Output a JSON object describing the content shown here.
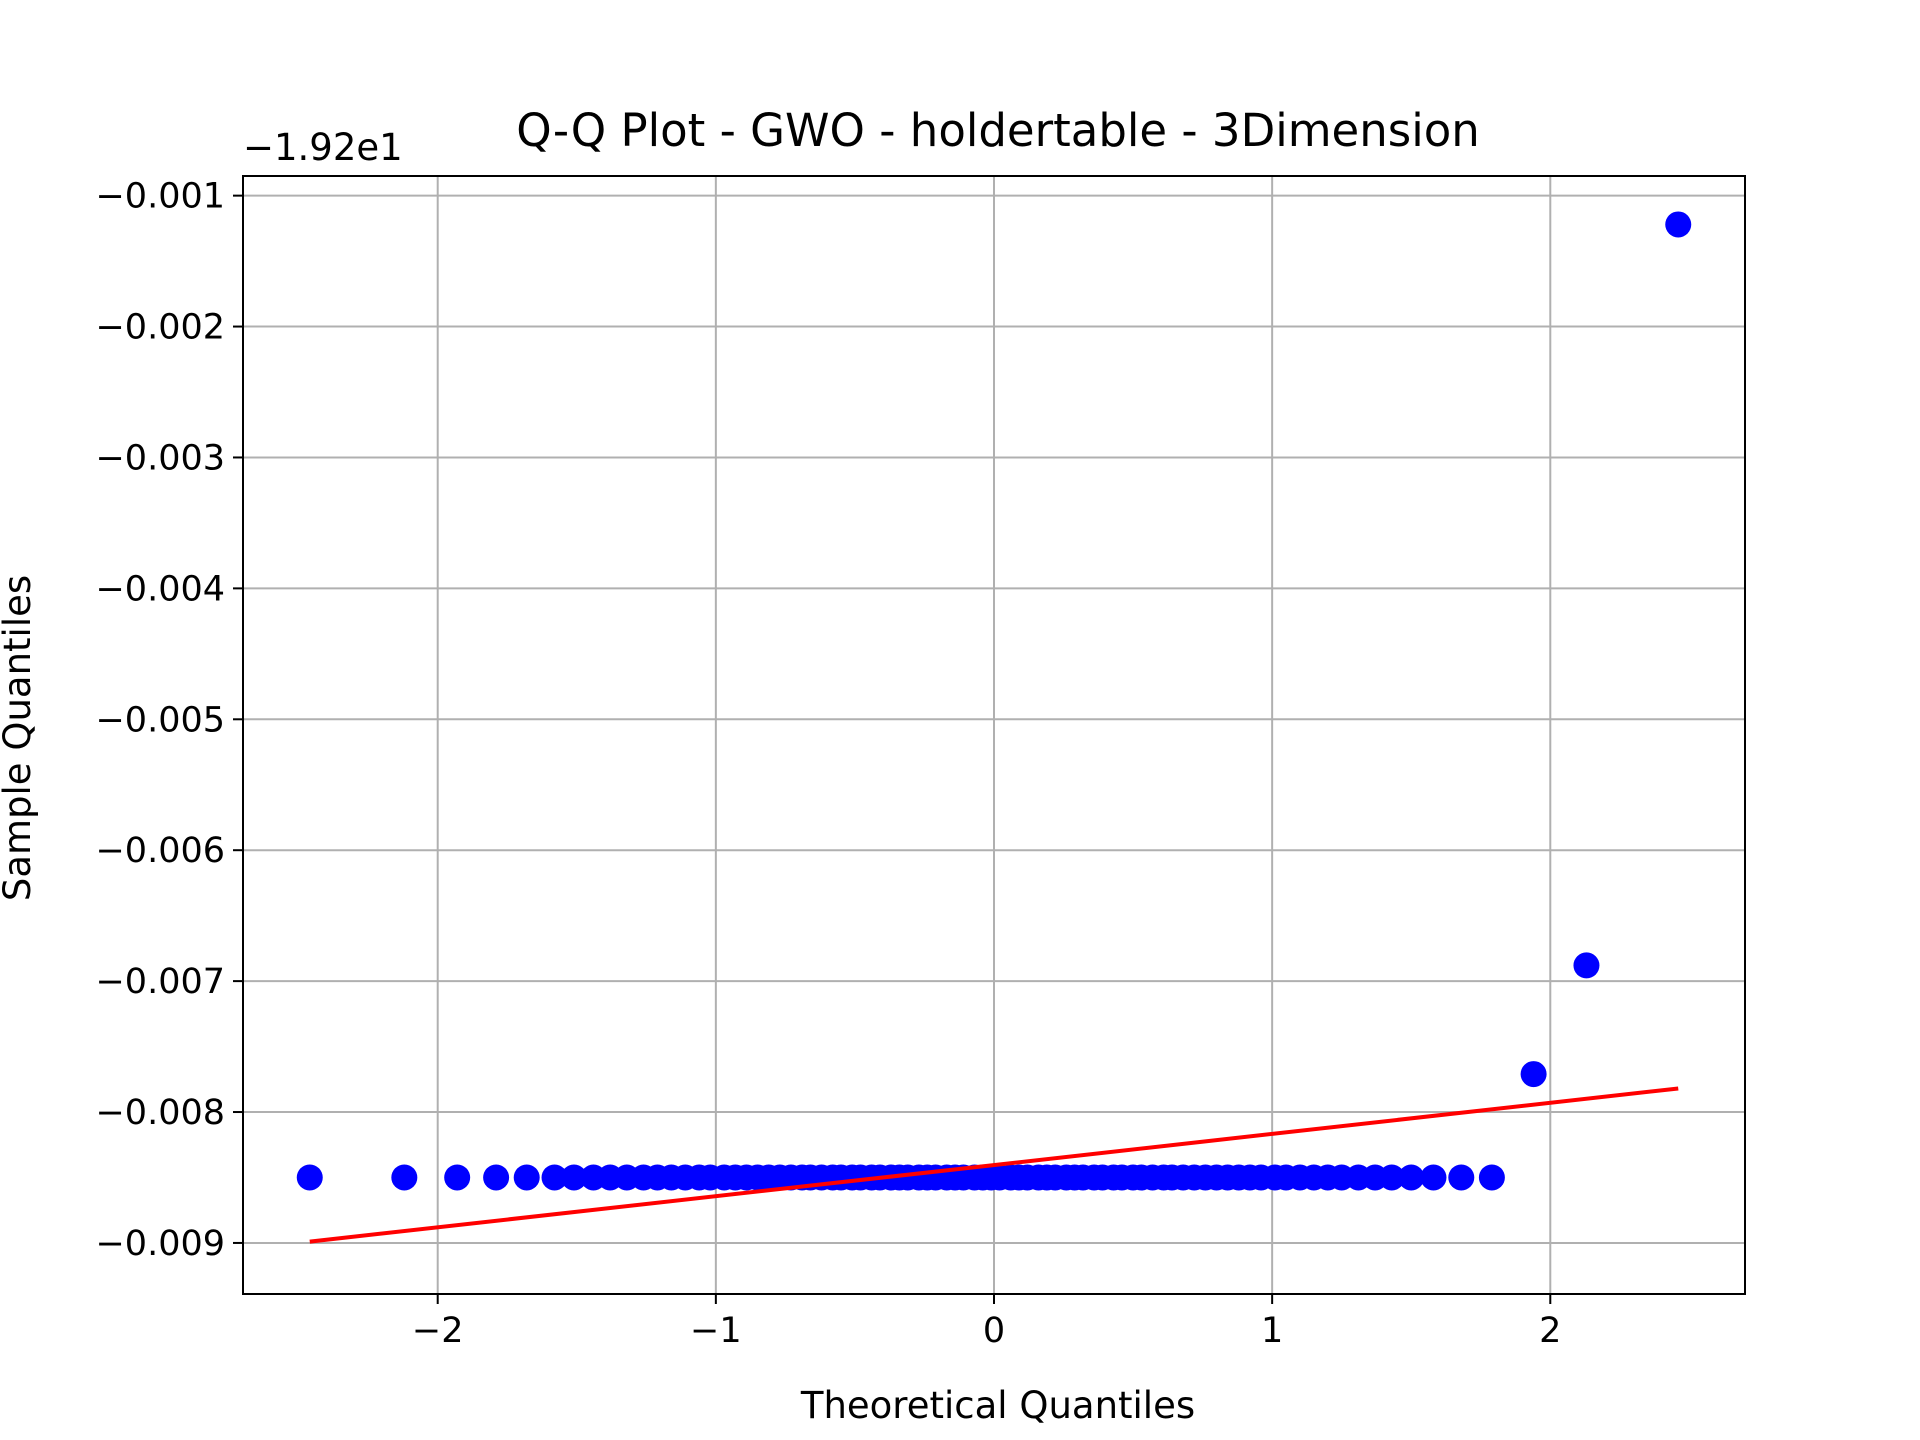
{
  "chart_data": {
    "type": "scatter",
    "title": "Q-Q Plot - GWO - holdertable - 3Dimension",
    "xlabel": "Theoretical Quantiles",
    "ylabel": "Sample Quantiles",
    "y_offset_label": "−1.92e1",
    "xlim": [
      -2.7,
      2.7
    ],
    "ylim": [
      -0.00939,
      -0.00085
    ],
    "x_ticks": [
      -2,
      -1,
      0,
      1,
      2
    ],
    "x_tick_labels": [
      "−2",
      "−1",
      "0",
      "1",
      "2"
    ],
    "y_ticks": [
      -0.001,
      -0.002,
      -0.003,
      -0.004,
      -0.005,
      -0.006,
      -0.007,
      -0.008,
      -0.009
    ],
    "y_tick_labels": [
      "−0.001",
      "−0.002",
      "−0.003",
      "−0.004",
      "−0.005",
      "−0.006",
      "−0.007",
      "−0.008",
      "−0.009"
    ],
    "grid": true,
    "series": [
      {
        "kind": "points",
        "color": "#0000ff",
        "x": [
          -2.46,
          -2.12,
          -1.93,
          -1.79,
          -1.68,
          -1.58,
          -1.51,
          -1.44,
          -1.38,
          -1.32,
          -1.26,
          -1.21,
          -1.16,
          -1.11,
          -1.06,
          -1.02,
          -0.97,
          -0.93,
          -0.89,
          -0.85,
          -0.81,
          -0.77,
          -0.73,
          -0.69,
          -0.66,
          -0.62,
          -0.58,
          -0.55,
          -0.51,
          -0.48,
          -0.44,
          -0.41,
          -0.37,
          -0.34,
          -0.31,
          -0.27,
          -0.24,
          -0.21,
          -0.17,
          -0.14,
          -0.11,
          -0.07,
          -0.04,
          -0.01,
          0.02,
          0.06,
          0.09,
          0.12,
          0.16,
          0.19,
          0.22,
          0.26,
          0.29,
          0.32,
          0.36,
          0.39,
          0.43,
          0.46,
          0.5,
          0.53,
          0.57,
          0.61,
          0.64,
          0.68,
          0.72,
          0.76,
          0.8,
          0.84,
          0.88,
          0.92,
          0.96,
          1.01,
          1.05,
          1.1,
          1.15,
          1.2,
          1.25,
          1.31,
          1.37,
          1.43,
          1.5,
          1.58,
          1.68,
          1.79,
          1.94,
          2.13,
          2.46
        ],
        "y": [
          -0.0085,
          -0.0085,
          -0.0085,
          -0.0085,
          -0.0085,
          -0.0085,
          -0.0085,
          -0.0085,
          -0.0085,
          -0.0085,
          -0.0085,
          -0.0085,
          -0.0085,
          -0.0085,
          -0.0085,
          -0.0085,
          -0.0085,
          -0.0085,
          -0.0085,
          -0.0085,
          -0.0085,
          -0.0085,
          -0.0085,
          -0.0085,
          -0.0085,
          -0.0085,
          -0.0085,
          -0.0085,
          -0.0085,
          -0.0085,
          -0.0085,
          -0.0085,
          -0.0085,
          -0.0085,
          -0.0085,
          -0.0085,
          -0.0085,
          -0.0085,
          -0.0085,
          -0.0085,
          -0.0085,
          -0.0085,
          -0.0085,
          -0.0085,
          -0.0085,
          -0.0085,
          -0.0085,
          -0.0085,
          -0.0085,
          -0.0085,
          -0.0085,
          -0.0085,
          -0.0085,
          -0.0085,
          -0.0085,
          -0.0085,
          -0.0085,
          -0.0085,
          -0.0085,
          -0.0085,
          -0.0085,
          -0.0085,
          -0.0085,
          -0.0085,
          -0.0085,
          -0.0085,
          -0.0085,
          -0.0085,
          -0.0085,
          -0.0085,
          -0.0085,
          -0.0085,
          -0.0085,
          -0.0085,
          -0.0085,
          -0.0085,
          -0.0085,
          -0.0085,
          -0.0085,
          -0.0085,
          -0.0085,
          -0.0085,
          -0.0085,
          -0.0085,
          -0.00771,
          -0.00688,
          -0.00122
        ]
      },
      {
        "kind": "line",
        "color": "#ff0000",
        "x": [
          -2.46,
          2.46
        ],
        "y": [
          -0.00899,
          -0.00782
        ]
      }
    ]
  }
}
